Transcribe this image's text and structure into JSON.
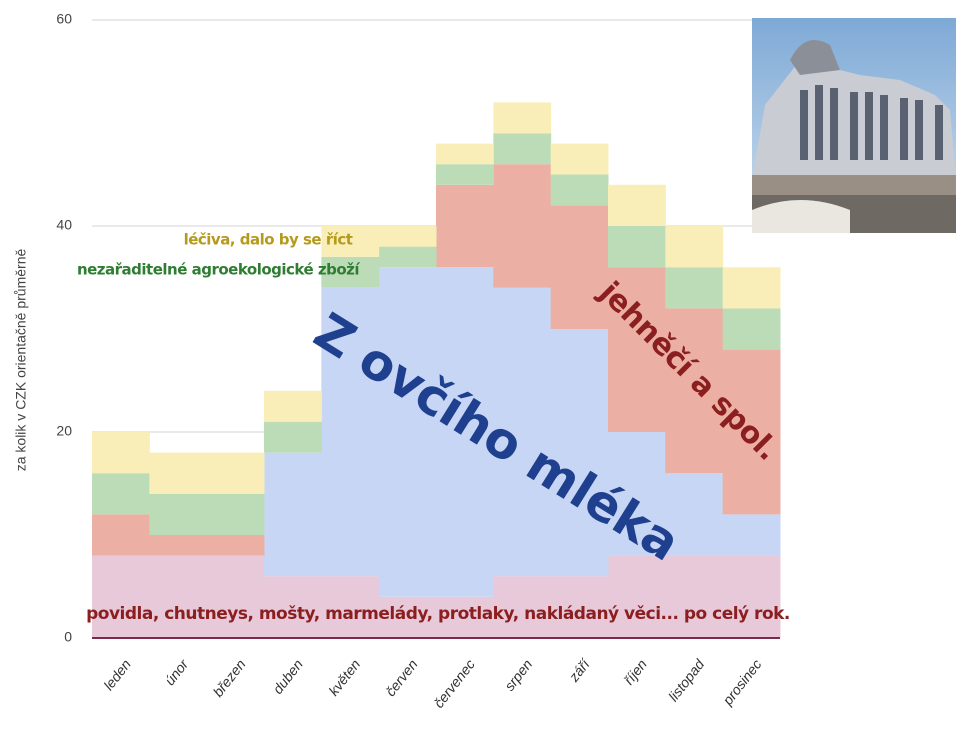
{
  "chart_data": {
    "type": "stepped-stacked-area",
    "y_label": "za kolik v CZK orientačně průměrně",
    "categories": [
      "leden",
      "únor",
      "březen",
      "duben",
      "květen",
      "červen",
      "červenec",
      "srpen",
      "září",
      "říjen",
      "listopad",
      "prosinec"
    ],
    "series": [
      {
        "name": "povidla, chutneys, mošty, marmelády, protlaky, nakládaný věci... po celý rok.",
        "color": "#e8c9da",
        "label_color": "#8b1e1e",
        "values": [
          8,
          8,
          8,
          6,
          6,
          4,
          4,
          6,
          6,
          8,
          8,
          8
        ]
      },
      {
        "name": "Z ovčího mléka",
        "color": "#c7d6f4",
        "label_color": "#1f3f8f",
        "values": [
          0,
          0,
          0,
          12,
          28,
          32,
          32,
          28,
          24,
          12,
          8,
          4
        ]
      },
      {
        "name": "jehněčí a spol.",
        "color": "#ebb0a3",
        "label_color": "#8b1e1e",
        "values": [
          4,
          2,
          2,
          0,
          0,
          0,
          8,
          12,
          12,
          16,
          16,
          16
        ]
      },
      {
        "name": "nezařaditelné agroekologické zboží",
        "color": "#bcdcb8",
        "label_color": "#2e7d32",
        "values": [
          4,
          4,
          4,
          3,
          3,
          2,
          2,
          3,
          3,
          4,
          4,
          4
        ]
      },
      {
        "name": "léčiva, dalo by se říct",
        "color": "#f9eeb8",
        "label_color": "#b59a1c",
        "values": [
          4,
          4,
          4,
          3,
          3,
          2,
          2,
          3,
          3,
          4,
          4,
          4
        ]
      }
    ],
    "ylim": [
      0,
      60
    ],
    "yticks": [
      0,
      20,
      40,
      60
    ],
    "grid": true
  }
}
